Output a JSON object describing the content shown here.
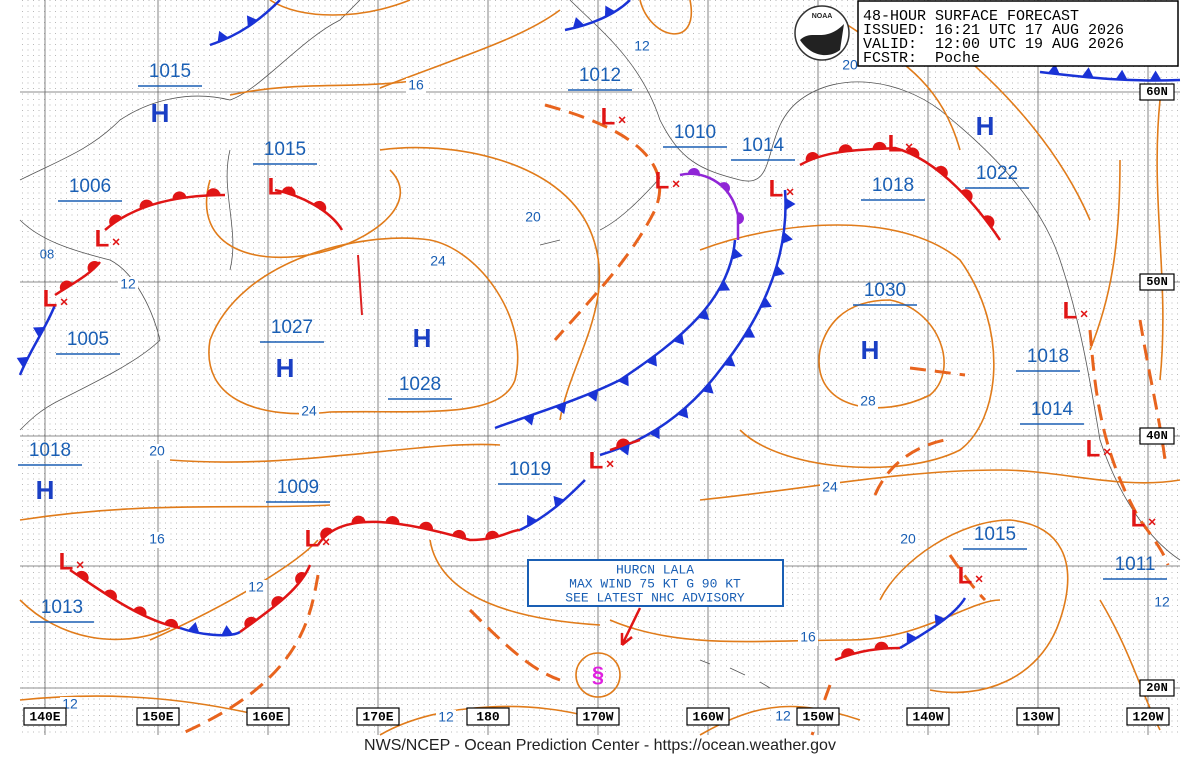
{
  "header": {
    "logo": "NOAA",
    "lines": [
      "48-HOUR SURFACE FORECAST",
      "ISSUED: 16:21 UTC 17 AUG 2026",
      "VALID:  12:00 UTC 19 AUG 2026",
      "FCSTR:  Poche"
    ]
  },
  "symbols": [
    "H",
    "H",
    "H",
    "H",
    "H",
    "H",
    "L",
    "L",
    "L",
    "L",
    "L",
    "L",
    "L",
    "L",
    "L",
    "L",
    "L",
    "L",
    "L",
    "L"
  ],
  "pressure_labels": [
    "1015",
    "1015",
    "1006",
    "08",
    "1005",
    "1027",
    "1028",
    "1012",
    "1010",
    "1014",
    "1018",
    "1022",
    "1030",
    "1018",
    "1014",
    "1018",
    "1019",
    "1009",
    "1013",
    "1015",
    "1011"
  ],
  "isobar_labels": [
    "16",
    "12",
    "20",
    "20",
    "24",
    "12",
    "24",
    "20",
    "28",
    "24",
    "16",
    "12",
    "20",
    "16",
    "12",
    "12",
    "12",
    "12"
  ],
  "longitudes": [
    "140E",
    "150E",
    "160E",
    "170E",
    "180",
    "170W",
    "160W",
    "150W",
    "140W",
    "130W",
    "120W"
  ],
  "latitudes": [
    "60N",
    "50N",
    "40N",
    "20N"
  ],
  "hurricane": {
    "lines": [
      "HURCN LALA",
      "MAX WIND 75 KT G 90 KT",
      "SEE LATEST NHC ADVISORY"
    ]
  },
  "footer": "NWS/NCEP - Ocean Prediction Center - https://ocean.weather.gov"
}
